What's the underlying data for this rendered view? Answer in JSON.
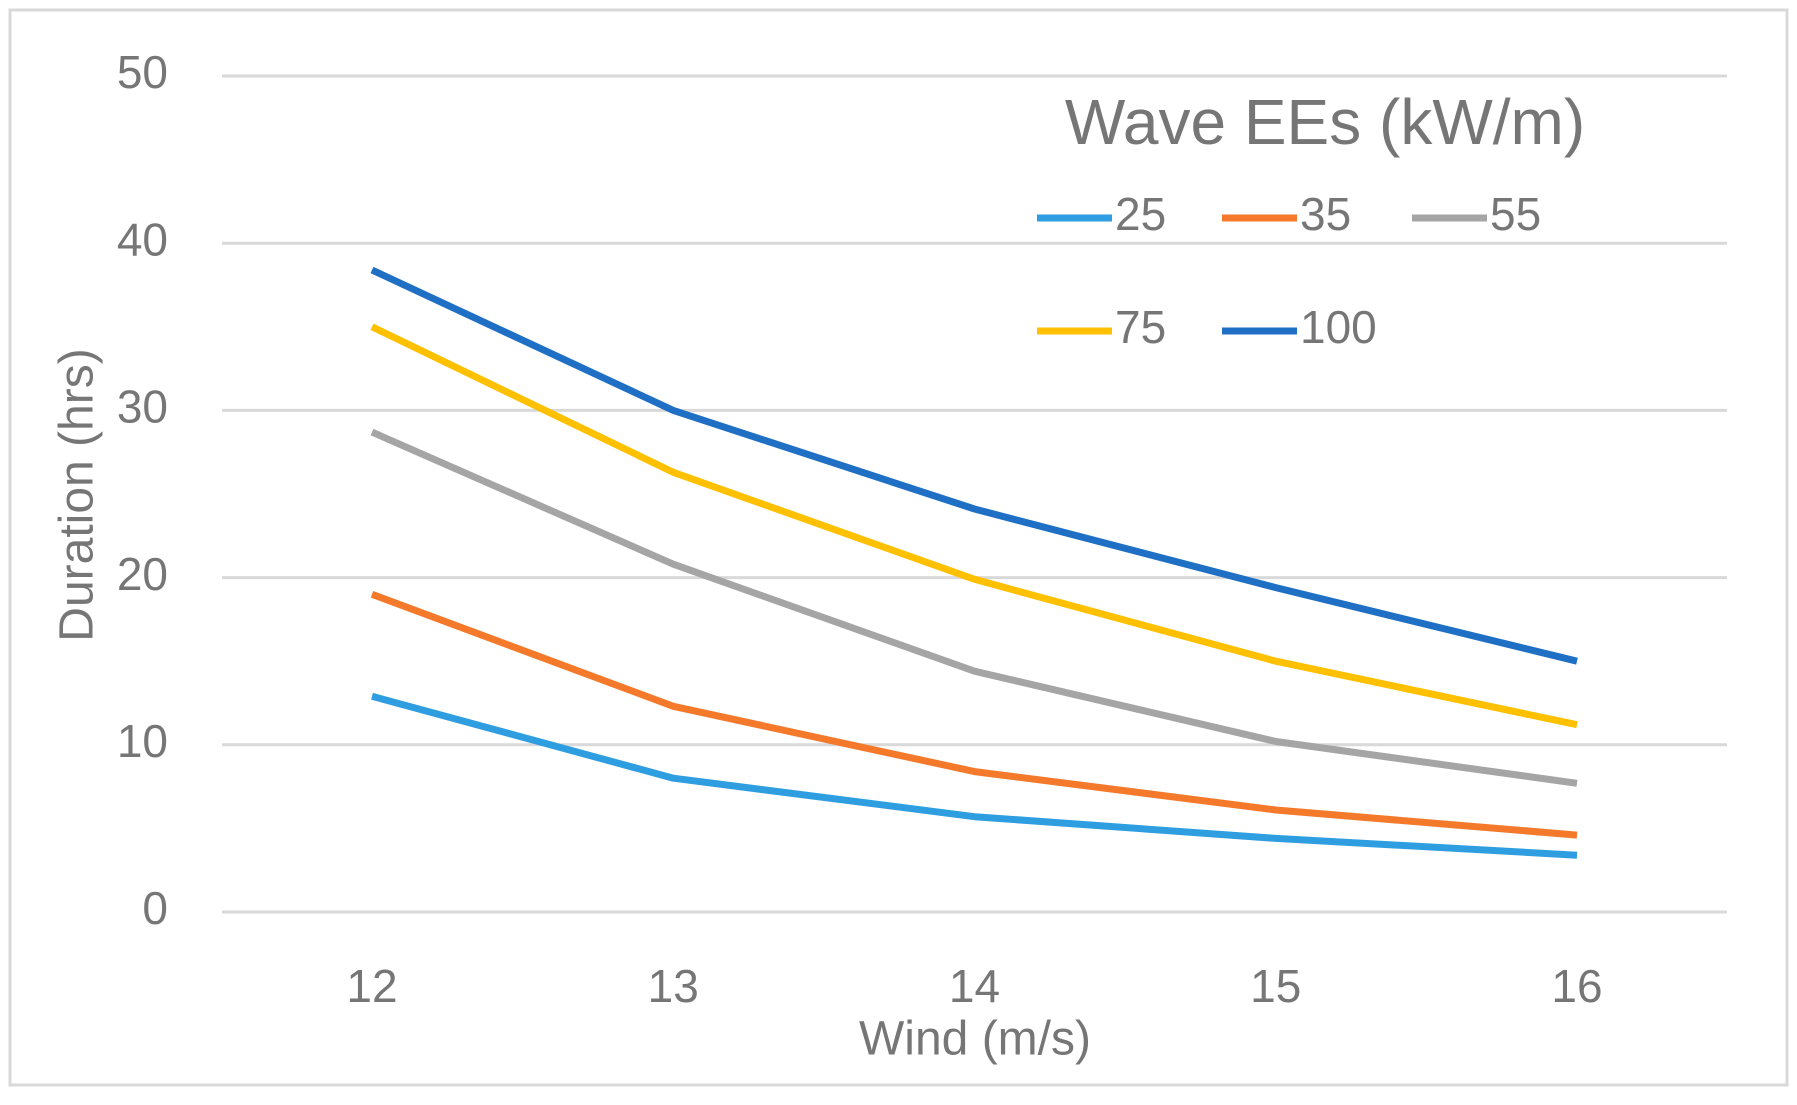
{
  "chart_data": {
    "type": "line",
    "title": "",
    "xlabel": "Wind (m/s)",
    "ylabel": "Duration (hrs)",
    "categories": [
      "12",
      "13",
      "14",
      "15",
      "16"
    ],
    "x": [
      12,
      13,
      14,
      15,
      16
    ],
    "ylim": [
      0,
      50
    ],
    "yticks": [
      "0",
      "10",
      "20",
      "30",
      "40",
      "50"
    ],
    "grid": true,
    "legend": {
      "title": "Wave EEs (kW/m)",
      "position": "top-right"
    },
    "series": [
      {
        "name": "25",
        "color": "#2e9ee0",
        "values": [
          12.9,
          8.0,
          5.7,
          4.4,
          3.4
        ]
      },
      {
        "name": "35",
        "color": "#f4792b",
        "values": [
          19.0,
          12.3,
          8.4,
          6.1,
          4.6
        ]
      },
      {
        "name": "55",
        "color": "#a5a5a5",
        "values": [
          28.7,
          20.8,
          14.4,
          10.2,
          7.7
        ]
      },
      {
        "name": "75",
        "color": "#ffc000",
        "values": [
          35.0,
          26.3,
          19.9,
          15.0,
          11.2
        ]
      },
      {
        "name": "100",
        "color": "#1f6fc5",
        "values": [
          38.4,
          30.0,
          24.1,
          19.4,
          15.0
        ]
      }
    ]
  }
}
